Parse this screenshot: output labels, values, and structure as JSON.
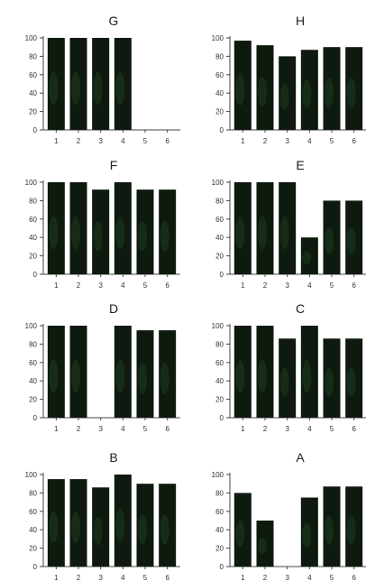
{
  "chart_data": [
    {
      "type": "bar",
      "title": "G",
      "categories": [
        "1",
        "2",
        "3",
        "4",
        "5",
        "6"
      ],
      "values": [
        100,
        100,
        100,
        100,
        0,
        0
      ],
      "ylim": [
        0,
        100
      ],
      "yticks": [
        "0",
        "20",
        "40",
        "60",
        "80",
        "100"
      ]
    },
    {
      "type": "bar",
      "title": "H",
      "categories": [
        "1",
        "2",
        "3",
        "4",
        "5",
        "6"
      ],
      "values": [
        97,
        92,
        80,
        87,
        90,
        90
      ],
      "ylim": [
        0,
        100
      ],
      "yticks": [
        "0",
        "20",
        "40",
        "60",
        "80",
        "100"
      ]
    },
    {
      "type": "bar",
      "title": "F",
      "categories": [
        "1",
        "2",
        "3",
        "4",
        "5",
        "6"
      ],
      "values": [
        100,
        100,
        92,
        100,
        92,
        92
      ],
      "ylim": [
        0,
        100
      ],
      "yticks": [
        "0",
        "20",
        "40",
        "60",
        "80",
        "100"
      ]
    },
    {
      "type": "bar",
      "title": "E",
      "categories": [
        "1",
        "2",
        "3",
        "4",
        "5",
        "6"
      ],
      "values": [
        100,
        100,
        100,
        40,
        80,
        80
      ],
      "ylim": [
        0,
        100
      ],
      "yticks": [
        "0",
        "20",
        "40",
        "60",
        "80",
        "100"
      ]
    },
    {
      "type": "bar",
      "title": "D",
      "categories": [
        "1",
        "2",
        "3",
        "4",
        "5",
        "6"
      ],
      "values": [
        100,
        100,
        0,
        100,
        95,
        95
      ],
      "ylim": [
        0,
        100
      ],
      "yticks": [
        "0",
        "20",
        "40",
        "60",
        "80",
        "100"
      ]
    },
    {
      "type": "bar",
      "title": "C",
      "categories": [
        "1",
        "2",
        "3",
        "4",
        "5",
        "6"
      ],
      "values": [
        100,
        100,
        86,
        100,
        86,
        86
      ],
      "ylim": [
        0,
        100
      ],
      "yticks": [
        "0",
        "20",
        "40",
        "60",
        "80",
        "100"
      ]
    },
    {
      "type": "bar",
      "title": "B",
      "categories": [
        "1",
        "2",
        "3",
        "4",
        "5",
        "6"
      ],
      "values": [
        95,
        95,
        86,
        100,
        90,
        90
      ],
      "ylim": [
        0,
        100
      ],
      "yticks": [
        "0",
        "20",
        "40",
        "60",
        "80",
        "100"
      ]
    },
    {
      "type": "bar",
      "title": "A",
      "categories": [
        "1",
        "2",
        "3",
        "4",
        "5",
        "6"
      ],
      "values": [
        80,
        50,
        0,
        75,
        87,
        87
      ],
      "ylim": [
        0,
        100
      ],
      "yticks": [
        "0",
        "20",
        "40",
        "60",
        "80",
        "100"
      ]
    }
  ]
}
